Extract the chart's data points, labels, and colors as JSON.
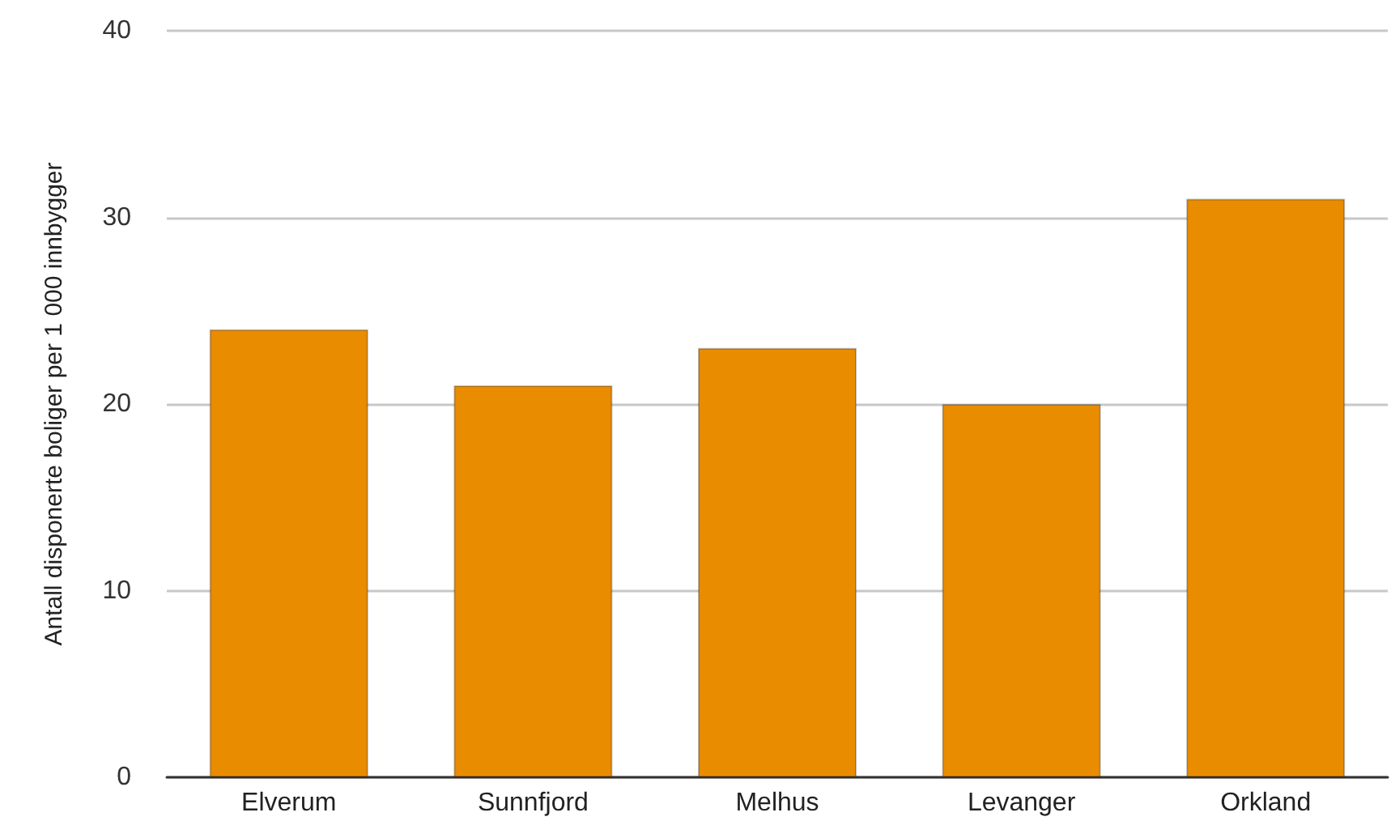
{
  "chart_data": {
    "type": "bar",
    "ylabel": "Antall disponerte boliger per 1 000 innbygger",
    "categories": [
      "Elverum",
      "Sunnfjord",
      "Melhus",
      "Levanger",
      "Orkland"
    ],
    "values": [
      24,
      21,
      23,
      20,
      31
    ],
    "color": "#ea8c00",
    "ylim": [
      0,
      40
    ],
    "yticks": [
      0,
      10,
      20,
      30,
      40
    ],
    "grid": "y"
  }
}
